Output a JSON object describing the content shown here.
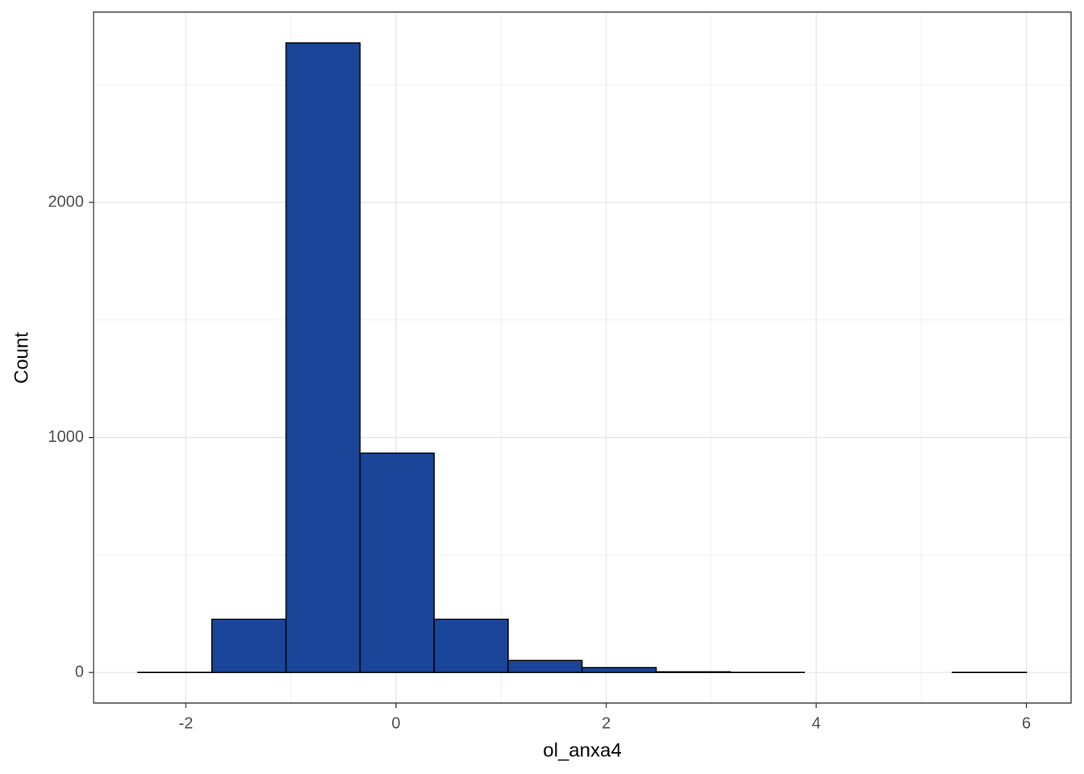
{
  "chart_data": {
    "type": "histogram",
    "x_label": "ol_anxa4",
    "y_label": "Count",
    "bins": [
      -2.457,
      -1.752,
      -1.047,
      -0.343,
      0.362,
      1.067,
      1.771,
      2.476,
      3.181,
      3.886,
      4.59,
      5.295,
      6.0
    ],
    "values": [
      1,
      226,
      2679,
      933,
      226,
      51,
      21,
      3,
      1,
      0,
      0,
      1
    ],
    "color": "#1a4599",
    "xlim": [
      -2.879,
      6.426
    ],
    "ylim": [
      -130,
      2810
    ],
    "xticks": [
      -2,
      0,
      2,
      4,
      6
    ],
    "yticks": [
      0,
      1000,
      2000
    ],
    "minor_xticks": [
      -1,
      1,
      3,
      5
    ],
    "minor_yticks": [
      500,
      1500,
      2500
    ],
    "grid": true
  }
}
